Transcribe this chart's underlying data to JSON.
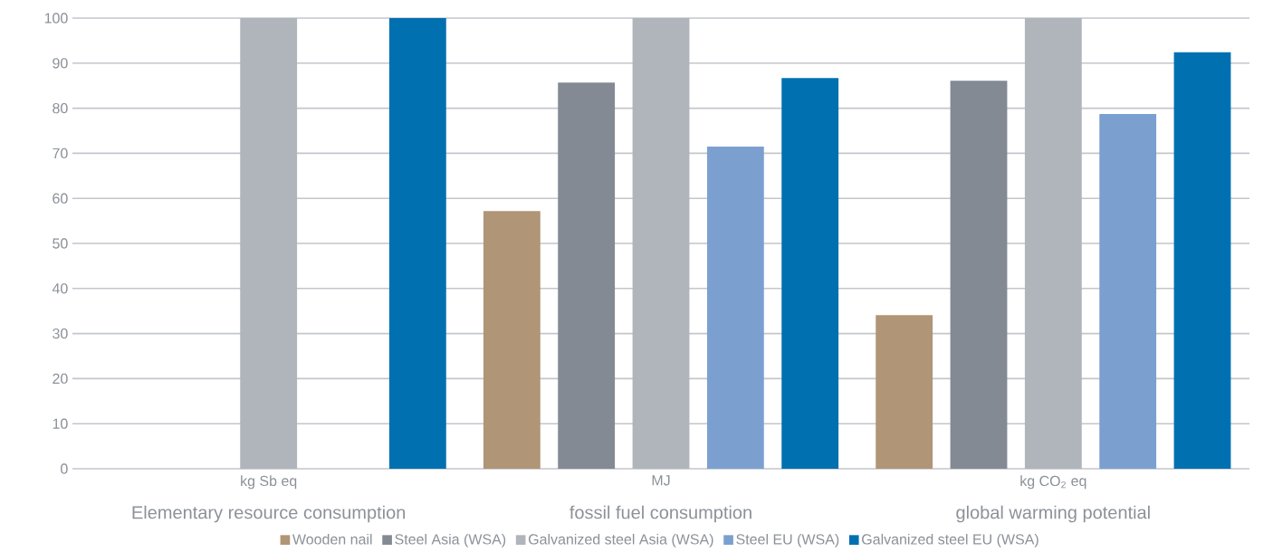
{
  "chart_data": {
    "type": "bar",
    "categories": [
      "kg Sb eq",
      "MJ",
      "kg CO$_{2}$ eq"
    ],
    "annotations": [
      "Elementary resource consumption",
      "fossil fuel consumption",
      "global warming potential"
    ],
    "series": [
      {
        "name": "Wooden nail",
        "color": "#b09576",
        "values": [
          null,
          57.2,
          34.1
        ]
      },
      {
        "name": "Steel Asia (WSA)",
        "color": "#838a94",
        "values": [
          null,
          85.7,
          86.1
        ]
      },
      {
        "name": "Galvanized steel Asia (WSA)",
        "color": "#b0b4bb",
        "values": [
          100,
          100,
          100
        ]
      },
      {
        "name": "Steel EU (WSA)",
        "color": "#7ba0d0",
        "values": [
          null,
          71.5,
          78.7
        ]
      },
      {
        "name": "Galvanized steel EU (WSA)",
        "color": "#0070b0",
        "values": [
          100,
          86.7,
          92.4
        ]
      }
    ],
    "ylim": [
      0,
      100
    ],
    "yticks": [
      0,
      10,
      20,
      30,
      40,
      50,
      60,
      70,
      80,
      90,
      100
    ],
    "grid": "y",
    "legend": "bottom"
  }
}
